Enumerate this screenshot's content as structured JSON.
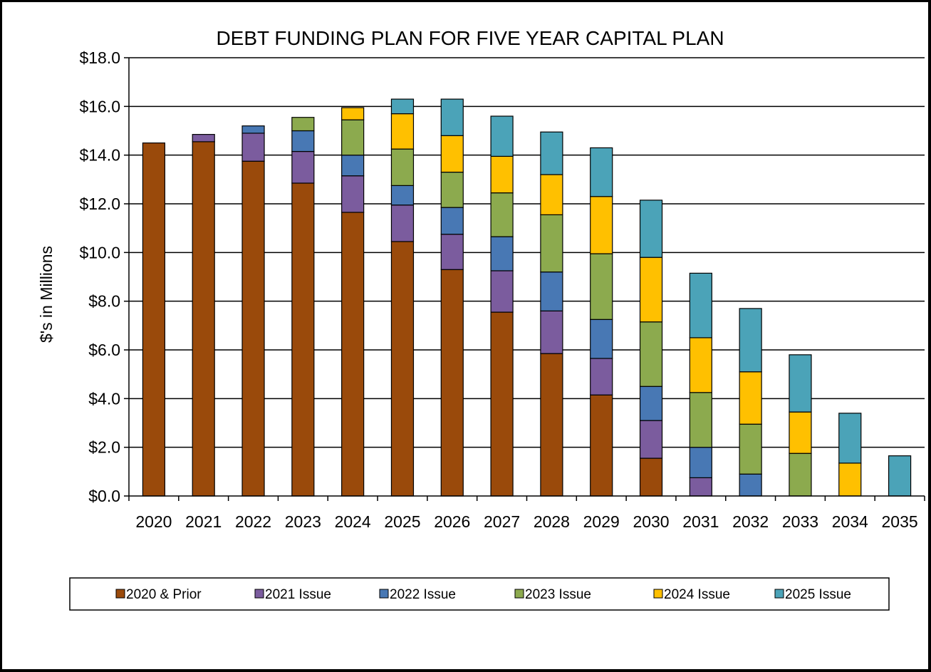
{
  "chart_data": {
    "type": "bar",
    "stacked": true,
    "title": "DEBT FUNDING PLAN FOR FIVE YEAR CAPITAL PLAN",
    "xlabel": "",
    "ylabel": "$'s in Millions",
    "ylim": [
      0,
      18
    ],
    "yticks": [
      "$0.0",
      "$2.0",
      "$4.0",
      "$6.0",
      "$8.0",
      "$10.0",
      "$12.0",
      "$14.0",
      "$16.0",
      "$18.0"
    ],
    "grid": true,
    "legend_position": "bottom",
    "categories": [
      "2020",
      "2021",
      "2022",
      "2023",
      "2024",
      "2025",
      "2026",
      "2027",
      "2028",
      "2029",
      "2030",
      "2031",
      "2032",
      "2033",
      "2034",
      "2035"
    ],
    "series": [
      {
        "name": "2020 & Prior",
        "color": "#9A4A0B",
        "values": [
          14.5,
          14.55,
          13.75,
          12.85,
          11.65,
          10.45,
          9.3,
          7.55,
          5.85,
          4.15,
          1.55,
          0,
          0,
          0,
          0,
          0
        ]
      },
      {
        "name": "2021 Issue",
        "color": "#7B5C9E",
        "values": [
          0,
          0.3,
          1.15,
          1.3,
          1.5,
          1.5,
          1.45,
          1.7,
          1.75,
          1.5,
          1.55,
          0.75,
          0,
          0,
          0,
          0
        ]
      },
      {
        "name": "2022 Issue",
        "color": "#4878B4",
        "values": [
          0,
          0,
          0.3,
          0.85,
          0.85,
          0.8,
          1.1,
          1.4,
          1.6,
          1.6,
          1.4,
          1.25,
          0.9,
          0,
          0,
          0
        ]
      },
      {
        "name": "2023 Issue",
        "color": "#8CAA4E",
        "values": [
          0,
          0,
          0,
          0.55,
          1.45,
          1.5,
          1.45,
          1.8,
          2.35,
          2.7,
          2.65,
          2.25,
          2.05,
          1.75,
          0,
          0
        ]
      },
      {
        "name": "2024 Issue",
        "color": "#FFC000",
        "values": [
          0,
          0,
          0,
          0,
          0.5,
          1.45,
          1.5,
          1.5,
          1.65,
          2.35,
          2.65,
          2.25,
          2.15,
          1.7,
          1.35,
          0
        ]
      },
      {
        "name": "2025 Issue",
        "color": "#4BA3B8",
        "values": [
          0,
          0,
          0,
          0,
          0,
          0.6,
          1.5,
          1.65,
          1.75,
          2.0,
          2.35,
          2.65,
          2.6,
          2.35,
          2.05,
          1.65
        ]
      }
    ]
  }
}
